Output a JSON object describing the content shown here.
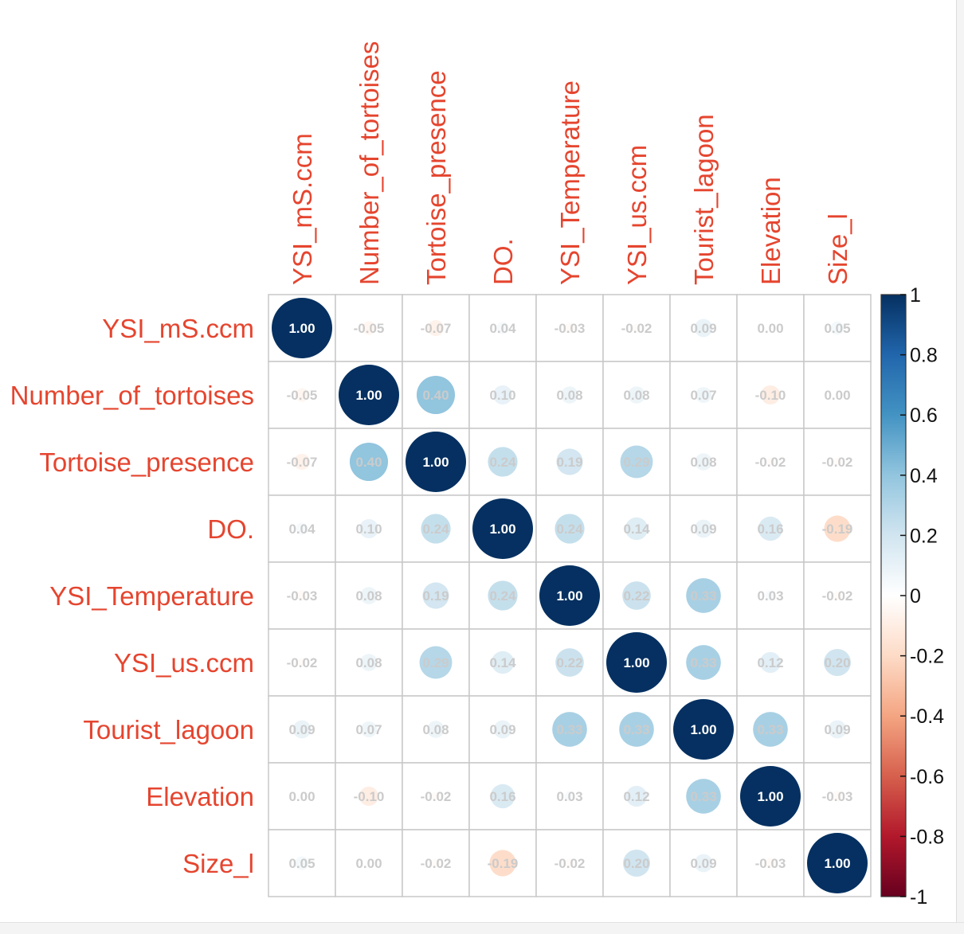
{
  "chart_data": {
    "type": "heatmap",
    "style": "corrplot-circle",
    "title": "",
    "variables": [
      "YSI_mS.ccm",
      "Number_of_tortoises",
      "Tortoise_presence",
      "DO.",
      "YSI_Temperature",
      "YSI_us.ccm",
      "Tourist_lagoon",
      "Elevation",
      "Size_l"
    ],
    "matrix": [
      [
        "1.00",
        "-0.05",
        "-0.07",
        "0.04",
        "-0.03",
        "-0.02",
        "0.09",
        "0.00",
        "0.05"
      ],
      [
        "-0.05",
        "1.00",
        "0.40",
        "0.10",
        "0.08",
        "0.08",
        "0.07",
        "-0.10",
        "0.00"
      ],
      [
        "-0.07",
        "0.40",
        "1.00",
        "0.24",
        "0.19",
        "0.29",
        "0.08",
        "-0.02",
        "-0.02"
      ],
      [
        "0.04",
        "0.10",
        "0.24",
        "1.00",
        "0.24",
        "0.14",
        "0.09",
        "0.16",
        "-0.19"
      ],
      [
        "-0.03",
        "0.08",
        "0.19",
        "0.24",
        "1.00",
        "0.22",
        "0.33",
        "0.03",
        "-0.02"
      ],
      [
        "-0.02",
        "0.08",
        "0.29",
        "0.14",
        "0.22",
        "1.00",
        "0.33",
        "0.12",
        "0.20"
      ],
      [
        "0.09",
        "0.07",
        "0.08",
        "0.09",
        "0.33",
        "0.33",
        "1.00",
        "0.33",
        "0.09"
      ],
      [
        "0.00",
        "-0.10",
        "-0.02",
        "0.16",
        "0.03",
        "0.12",
        "0.33",
        "1.00",
        "-0.03"
      ],
      [
        "0.05",
        "0.00",
        "-0.02",
        "-0.19",
        "-0.02",
        "0.20",
        "0.09",
        "-0.03",
        "1.00"
      ]
    ],
    "value_range": [
      -1,
      1
    ],
    "colorbar": {
      "ticks": [
        "1",
        "0.8",
        "0.6",
        "0.4",
        "0.2",
        "0",
        "-0.2",
        "-0.4",
        "-0.6",
        "-0.8",
        "-1"
      ],
      "placement": "right"
    },
    "colors": {
      "label": "#e5452f",
      "grid": "#c8c8c8",
      "scale": [
        "#67001f",
        "#b2182b",
        "#d6604d",
        "#f4a582",
        "#fddbc7",
        "#ffffff",
        "#d1e5f0",
        "#92c5de",
        "#4393c3",
        "#2166ac",
        "#053061"
      ]
    }
  }
}
